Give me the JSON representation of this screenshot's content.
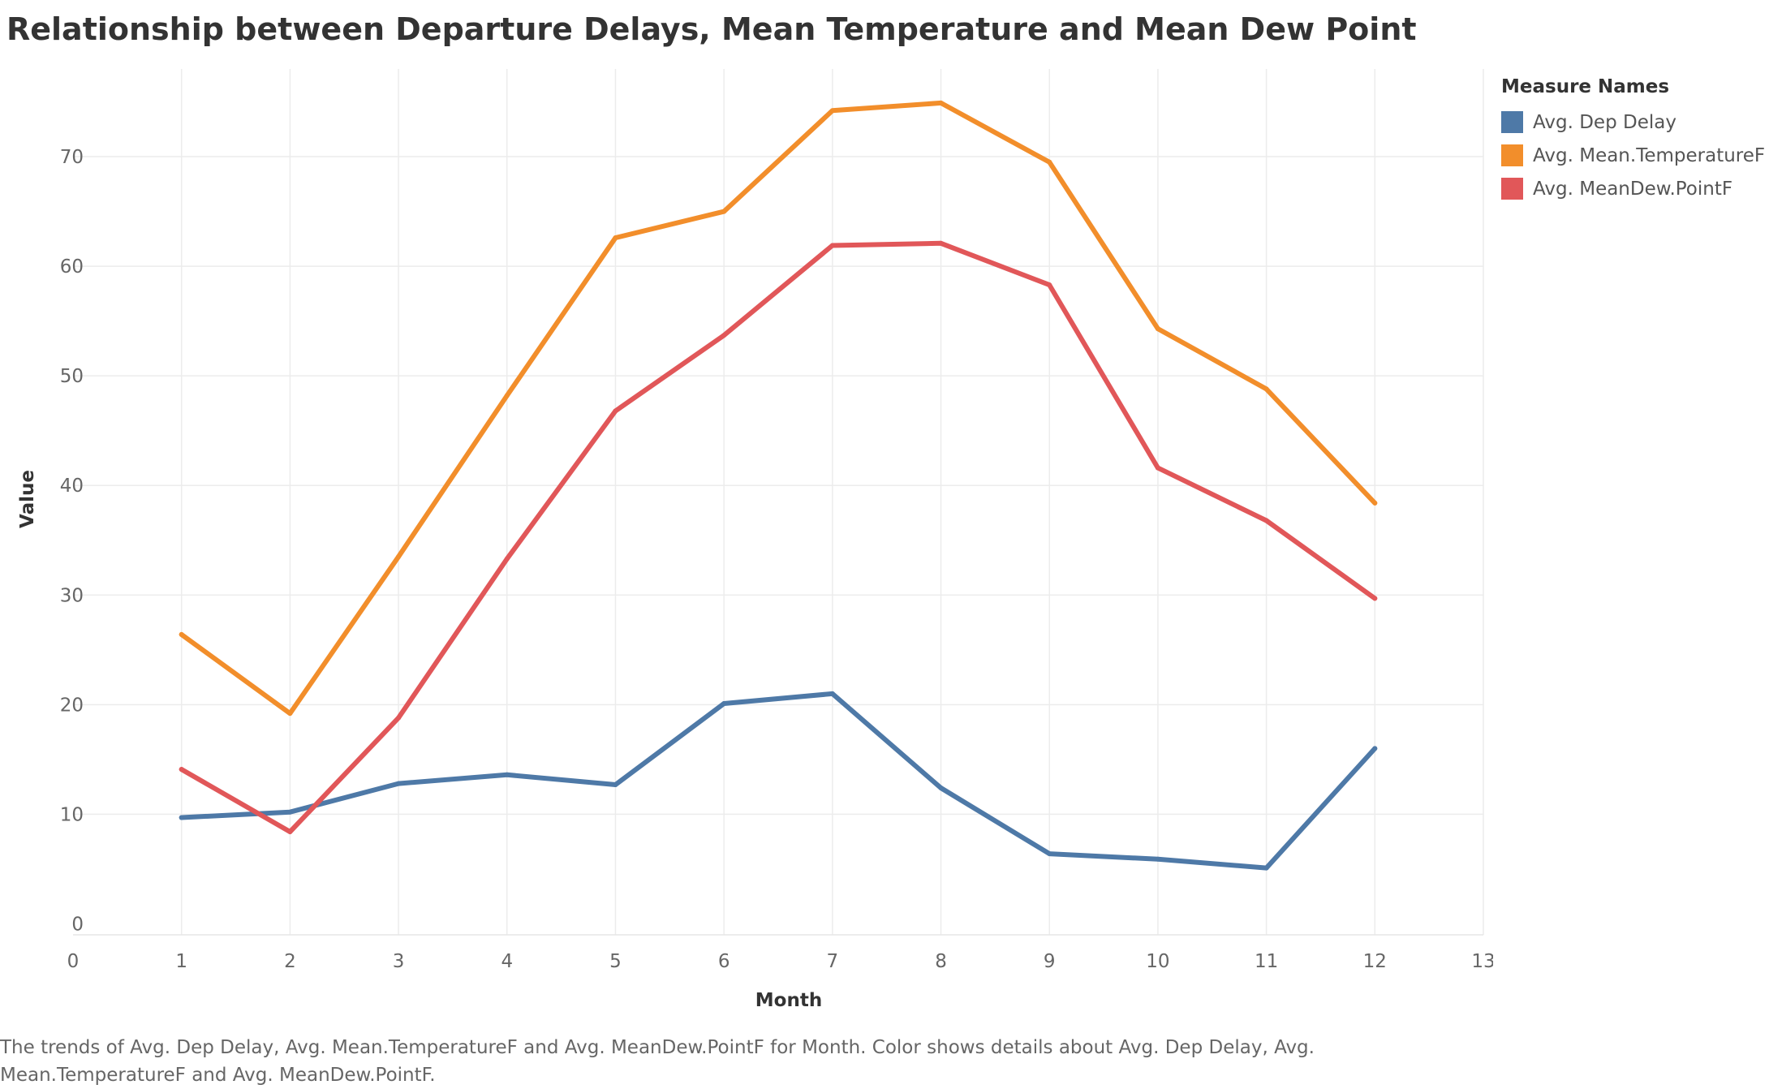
{
  "title": "Relationship between Departure Delays, Mean Temperature and Mean Dew Point",
  "legend": {
    "title": "Measure Names",
    "items": [
      {
        "label": "Avg. Dep Delay",
        "color": "#4e79a7"
      },
      {
        "label": "Avg. Mean.TemperatureF",
        "color": "#f28e2b"
      },
      {
        "label": "Avg. MeanDew.PointF",
        "color": "#e15759"
      }
    ]
  },
  "caption": "The trends of Avg. Dep Delay, Avg. Mean.TemperatureF and Avg. MeanDew.PointF for Month.  Color shows details about Avg. Dep Delay, Avg. Mean.TemperatureF and Avg. MeanDew.PointF.",
  "chart_data": {
    "type": "line",
    "title": "Relationship between Departure Delays, Mean Temperature and Mean Dew Point",
    "xlabel": "Month",
    "ylabel": "Value",
    "xlim": [
      0,
      13
    ],
    "ylim": [
      -1,
      78
    ],
    "xticks": [
      0,
      1,
      2,
      3,
      4,
      5,
      6,
      7,
      8,
      9,
      10,
      11,
      12,
      13
    ],
    "yticks": [
      0,
      10,
      20,
      30,
      40,
      50,
      60,
      70
    ],
    "grid": true,
    "legend_position": "top-right",
    "x": [
      1,
      2,
      3,
      4,
      5,
      6,
      7,
      8,
      9,
      10,
      11,
      12
    ],
    "series": [
      {
        "name": "Avg. Dep Delay",
        "color": "#4e79a7",
        "values": [
          9.7,
          10.2,
          12.8,
          13.6,
          12.7,
          20.1,
          21.0,
          12.4,
          6.4,
          5.9,
          5.1,
          16.0
        ]
      },
      {
        "name": "Avg. Mean.TemperatureF",
        "color": "#f28e2b",
        "values": [
          26.4,
          19.2,
          33.5,
          48.2,
          62.6,
          65.0,
          74.2,
          74.9,
          69.5,
          54.3,
          48.8,
          38.4
        ]
      },
      {
        "name": "Avg. MeanDew.PointF",
        "color": "#e15759",
        "values": [
          14.1,
          8.4,
          18.8,
          33.3,
          46.8,
          53.7,
          61.9,
          62.1,
          58.3,
          41.6,
          36.8,
          29.7
        ]
      }
    ]
  }
}
